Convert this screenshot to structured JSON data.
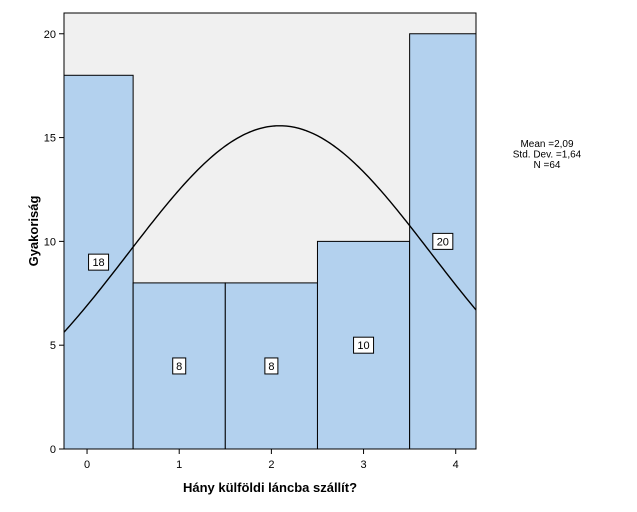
{
  "chart_data": {
    "type": "bar",
    "subtype": "histogram-with-normal-curve",
    "categories": [
      "0",
      "1",
      "2",
      "3",
      "4"
    ],
    "values": [
      18,
      8,
      8,
      10,
      20
    ],
    "data_labels": [
      "18",
      "8",
      "8",
      "10",
      "20"
    ],
    "xlabel": "Hány külföldi láncba szállít?",
    "ylabel": "Gyakoriság",
    "xlim": [
      -0.25,
      4.22
    ],
    "ylim": [
      0,
      21
    ],
    "x_ticks": [
      0,
      1,
      2,
      3,
      4
    ],
    "y_ticks": [
      0,
      5,
      10,
      15,
      20
    ],
    "bin_edges": [
      -0.28,
      0.5,
      1.5,
      2.5,
      3.5,
      4.22
    ],
    "grid": false,
    "stats": {
      "mean": 2.09,
      "std_dev": 1.64,
      "n": 64,
      "lines": [
        "Mean =2,09",
        "Std. Dev. =1,64",
        "N =64"
      ]
    },
    "colors": {
      "plot_background": "#f0f0f0",
      "bar_fill": "#b3d1ee",
      "bar_stroke": "#000000",
      "curve": "#000000"
    }
  }
}
